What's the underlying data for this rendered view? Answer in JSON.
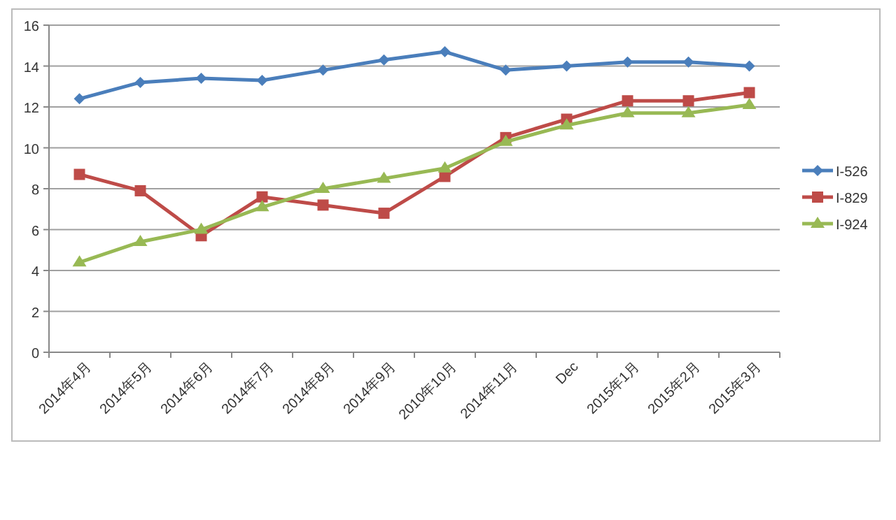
{
  "chart_data": {
    "type": "line",
    "categories": [
      "2014年4月",
      "2014年5月",
      "2014年6月",
      "2014年7月",
      "2014年8月",
      "2014年9月",
      "2010年10月",
      "2014年11月",
      "Dec",
      "2015年1月",
      "2015年2月",
      "2015年3月"
    ],
    "series": [
      {
        "name": "I-526",
        "color": "#4a7ebb",
        "marker": "diamond",
        "values": [
          12.4,
          13.2,
          13.4,
          13.3,
          13.8,
          14.3,
          14.7,
          13.8,
          14.0,
          14.2,
          14.2,
          14.0
        ]
      },
      {
        "name": "I-829",
        "color": "#be4b48",
        "marker": "square",
        "values": [
          8.7,
          7.9,
          5.7,
          7.6,
          7.2,
          6.8,
          8.6,
          10.5,
          11.4,
          12.3,
          12.3,
          12.7
        ]
      },
      {
        "name": "I-924",
        "color": "#98b954",
        "marker": "triangle",
        "values": [
          4.4,
          5.4,
          6.0,
          7.1,
          8.0,
          8.5,
          9.0,
          10.3,
          11.1,
          11.7,
          11.7,
          12.1
        ]
      }
    ],
    "ylim": [
      0,
      16
    ],
    "yticks": [
      0,
      2,
      4,
      6,
      8,
      10,
      12,
      14,
      16
    ],
    "grid": "y",
    "legend": "right",
    "line_style": "solid"
  }
}
